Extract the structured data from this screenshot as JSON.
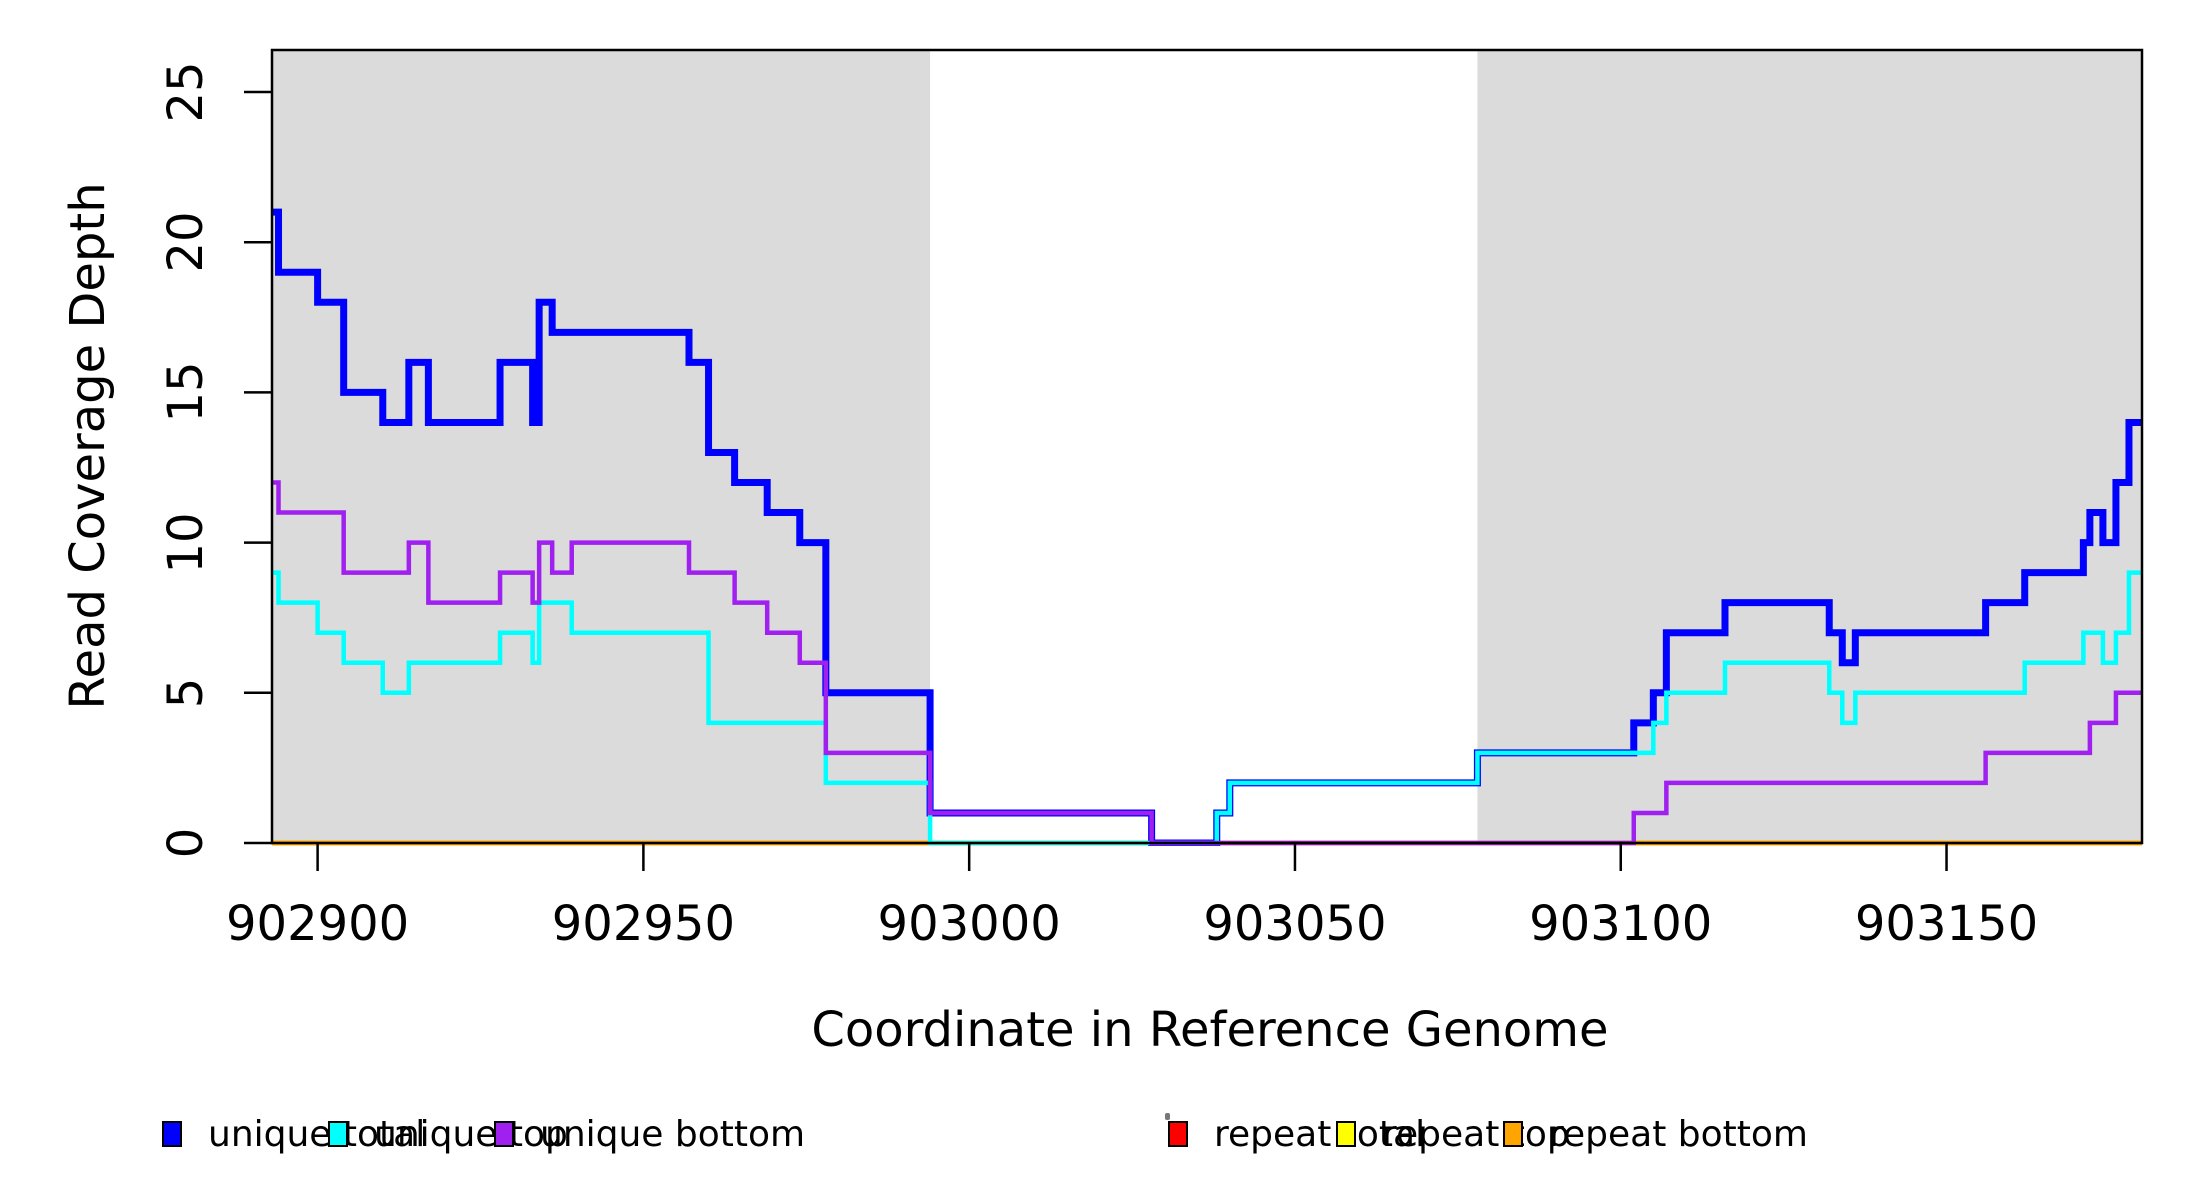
{
  "figure": {
    "background": "#FFFFFF",
    "axis_color": "#000000",
    "shade_color": "#DBDBDB"
  },
  "chart_data": {
    "type": "line",
    "subtype": "step-coverage-plot",
    "title": "",
    "xlabel": "Coordinate in Reference Genome",
    "ylabel": "Read Coverage Depth",
    "xlim": [
      902893,
      903180
    ],
    "ylim": [
      0,
      26.4
    ],
    "grid": false,
    "legend_position": "bottom",
    "x_ticks": [
      902900,
      902950,
      903000,
      903050,
      903100,
      903150
    ],
    "y_ticks": [
      0,
      5,
      10,
      15,
      20,
      25
    ],
    "shaded_regions": [
      {
        "x0": 902893,
        "x1": 902994
      },
      {
        "x0": 903078,
        "x1": 903180
      }
    ],
    "series": [
      {
        "name": "repeat total",
        "color": "#FF0000",
        "width": 4,
        "steps": [
          [
            902893,
            0
          ],
          [
            903180,
            0
          ]
        ]
      },
      {
        "name": "repeat top",
        "color": "#FFFF00",
        "width": 4,
        "steps": [
          [
            902893,
            0
          ],
          [
            903180,
            0
          ]
        ]
      },
      {
        "name": "repeat bottom",
        "color": "#FFA500",
        "width": 5,
        "steps": [
          [
            902893,
            0
          ],
          [
            903180,
            0
          ]
        ]
      },
      {
        "name": "unique total",
        "color": "#0000FF",
        "width": 7,
        "steps": [
          [
            902893,
            21
          ],
          [
            902894,
            19
          ],
          [
            902900,
            18
          ],
          [
            902904,
            15
          ],
          [
            902910,
            14
          ],
          [
            902914,
            16
          ],
          [
            902917,
            14
          ],
          [
            902928,
            16
          ],
          [
            902933,
            14
          ],
          [
            902934,
            18
          ],
          [
            902936,
            17
          ],
          [
            902957,
            16
          ],
          [
            902960,
            13
          ],
          [
            902964,
            12
          ],
          [
            902969,
            11
          ],
          [
            902974,
            10
          ],
          [
            902978,
            5
          ],
          [
            902994,
            1
          ],
          [
            903028,
            0
          ],
          [
            903038,
            1
          ],
          [
            903040,
            2
          ],
          [
            903078,
            3
          ],
          [
            903102,
            4
          ],
          [
            903105,
            5
          ],
          [
            903107,
            7
          ],
          [
            903116,
            8
          ],
          [
            903132,
            7
          ],
          [
            903134,
            6
          ],
          [
            903136,
            7
          ],
          [
            903156,
            8
          ],
          [
            903162,
            9
          ],
          [
            903171,
            10
          ],
          [
            903172,
            11
          ],
          [
            903174,
            10
          ],
          [
            903176,
            12
          ],
          [
            903178,
            14
          ],
          [
            903180,
            14
          ]
        ]
      },
      {
        "name": "unique top",
        "color": "#00FFFF",
        "width": 4.5,
        "steps": [
          [
            902893,
            9
          ],
          [
            902894,
            8
          ],
          [
            902900,
            7
          ],
          [
            902904,
            6
          ],
          [
            902910,
            5
          ],
          [
            902914,
            6
          ],
          [
            902928,
            7
          ],
          [
            902933,
            6
          ],
          [
            902934,
            8
          ],
          [
            902939,
            7
          ],
          [
            902960,
            4
          ],
          [
            902978,
            2
          ],
          [
            902994,
            0
          ],
          [
            903038,
            1
          ],
          [
            903040,
            2
          ],
          [
            903078,
            3
          ],
          [
            903105,
            4
          ],
          [
            903107,
            5
          ],
          [
            903116,
            6
          ],
          [
            903132,
            5
          ],
          [
            903134,
            4
          ],
          [
            903136,
            5
          ],
          [
            903162,
            6
          ],
          [
            903171,
            7
          ],
          [
            903174,
            6
          ],
          [
            903176,
            7
          ],
          [
            903178,
            9
          ],
          [
            903180,
            9
          ]
        ]
      },
      {
        "name": "unique bottom",
        "color": "#A020F0",
        "width": 4.5,
        "steps": [
          [
            902893,
            12
          ],
          [
            902894,
            11
          ],
          [
            902904,
            9
          ],
          [
            902914,
            10
          ],
          [
            902917,
            8
          ],
          [
            902928,
            9
          ],
          [
            902933,
            8
          ],
          [
            902934,
            10
          ],
          [
            902936,
            9
          ],
          [
            902939,
            10
          ],
          [
            902957,
            9
          ],
          [
            902964,
            8
          ],
          [
            902969,
            7
          ],
          [
            902974,
            6
          ],
          [
            902978,
            3
          ],
          [
            902994,
            1
          ],
          [
            903028,
            0
          ],
          [
            903102,
            1
          ],
          [
            903107,
            2
          ],
          [
            903156,
            3
          ],
          [
            903172,
            4
          ],
          [
            903176,
            5
          ],
          [
            903180,
            5
          ]
        ]
      }
    ],
    "legend": [
      {
        "label": "unique total",
        "color": "#0000FF"
      },
      {
        "label": "unique top",
        "color": "#00FFFF"
      },
      {
        "label": "unique bottom",
        "color": "#A020F0"
      },
      {
        "label": "repeat total",
        "color": "#FF0000"
      },
      {
        "label": "repeat top",
        "color": "#FFFF00"
      },
      {
        "label": "repeat bottom",
        "color": "#FFA500"
      }
    ]
  }
}
